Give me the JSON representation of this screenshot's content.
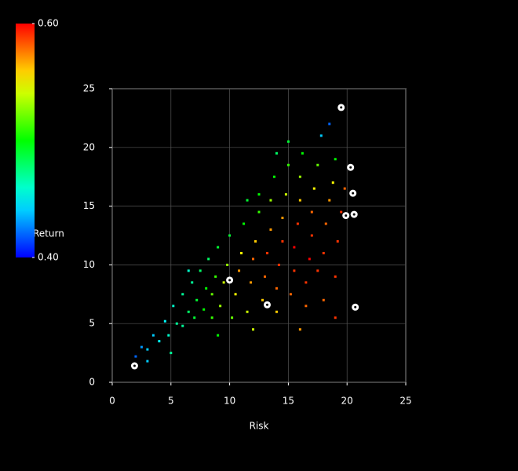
{
  "chart_data": {
    "type": "scatter",
    "xlabel": "Risk",
    "xlim": [
      0,
      25
    ],
    "ylim": [
      0,
      25
    ],
    "xticks": [
      0,
      5,
      10,
      15,
      20,
      25
    ],
    "yticks": [
      0,
      5,
      10,
      15,
      20,
      25
    ],
    "grid": true,
    "colorbar": {
      "label": "Return",
      "clim": [
        0.4,
        0.6
      ],
      "ticks": [
        {
          "value": 0.6,
          "label": "0.60"
        },
        {
          "value": 0.4,
          "label": "0.40"
        }
      ]
    },
    "x": [
      2.0,
      2.5,
      3.0,
      3.5,
      4.0,
      4.5,
      4.8,
      5.2,
      5.5,
      6.0,
      6.0,
      6.5,
      6.8,
      7.0,
      7.2,
      7.5,
      7.8,
      8.0,
      8.2,
      8.5,
      8.5,
      8.8,
      9.0,
      9.2,
      9.5,
      9.8,
      10.0,
      10.2,
      10.5,
      10.8,
      11.0,
      11.2,
      11.5,
      11.8,
      12.0,
      12.2,
      12.5,
      12.5,
      12.8,
      13.0,
      13.2,
      13.5,
      13.5,
      13.8,
      14.0,
      14.0,
      14.2,
      14.5,
      14.5,
      14.8,
      15.0,
      15.0,
      15.2,
      15.5,
      15.5,
      15.8,
      16.0,
      16.0,
      16.2,
      16.5,
      16.5,
      16.8,
      17.0,
      17.0,
      17.2,
      17.5,
      17.8,
      17.5,
      18.0,
      18.0,
      18.2,
      18.5,
      18.8,
      18.5,
      19.0,
      19.2,
      19.0,
      19.5,
      19.8,
      19.0,
      12.0,
      9.0,
      16.0,
      5.0,
      3.0,
      6.5,
      11.5,
      14.0
    ],
    "y": [
      2.2,
      3.0,
      2.8,
      4.0,
      3.5,
      5.2,
      4.0,
      6.5,
      5.0,
      7.5,
      4.8,
      6.0,
      8.5,
      5.5,
      7.0,
      9.5,
      6.2,
      8.0,
      10.5,
      5.5,
      7.5,
      9.0,
      11.5,
      6.5,
      8.5,
      10.0,
      12.5,
      5.5,
      7.5,
      9.5,
      11.0,
      13.5,
      6.0,
      8.5,
      10.5,
      12.0,
      14.5,
      16.0,
      7.0,
      9.0,
      11.0,
      13.0,
      15.5,
      17.5,
      6.0,
      8.0,
      10.0,
      12.0,
      14.0,
      16.0,
      18.5,
      20.5,
      7.5,
      9.5,
      11.5,
      13.5,
      15.5,
      17.5,
      19.5,
      6.5,
      8.5,
      10.5,
      12.5,
      14.5,
      16.5,
      18.5,
      21.0,
      9.5,
      11.0,
      7.0,
      13.5,
      15.5,
      17.0,
      22.0,
      9.0,
      12.0,
      5.5,
      14.5,
      16.5,
      19.0,
      4.5,
      4.0,
      4.5,
      2.5,
      1.8,
      9.5,
      15.5,
      19.5
    ],
    "z": [
      0.42,
      0.43,
      0.44,
      0.44,
      0.45,
      0.45,
      0.46,
      0.46,
      0.47,
      0.47,
      0.47,
      0.48,
      0.47,
      0.49,
      0.49,
      0.48,
      0.5,
      0.5,
      0.48,
      0.51,
      0.52,
      0.51,
      0.49,
      0.53,
      0.54,
      0.53,
      0.49,
      0.52,
      0.55,
      0.57,
      0.55,
      0.5,
      0.54,
      0.57,
      0.58,
      0.56,
      0.51,
      0.5,
      0.56,
      0.58,
      0.59,
      0.57,
      0.53,
      0.5,
      0.56,
      0.58,
      0.59,
      0.59,
      0.57,
      0.54,
      0.51,
      0.49,
      0.58,
      0.59,
      0.6,
      0.59,
      0.56,
      0.53,
      0.5,
      0.58,
      0.59,
      0.6,
      0.59,
      0.58,
      0.55,
      0.52,
      0.44,
      0.59,
      0.59,
      0.58,
      0.58,
      0.57,
      0.55,
      0.42,
      0.59,
      0.59,
      0.59,
      0.59,
      0.58,
      0.5,
      0.54,
      0.5,
      0.57,
      0.47,
      0.44,
      0.46,
      0.49,
      0.48
    ],
    "highlight": {
      "color": "#ffffff",
      "x": [
        1.9,
        10.0,
        13.2,
        19.5,
        20.3,
        20.5,
        19.9,
        20.6,
        20.7
      ],
      "y": [
        1.4,
        8.7,
        6.6,
        23.4,
        18.3,
        16.1,
        14.2,
        14.3,
        6.4
      ]
    }
  }
}
